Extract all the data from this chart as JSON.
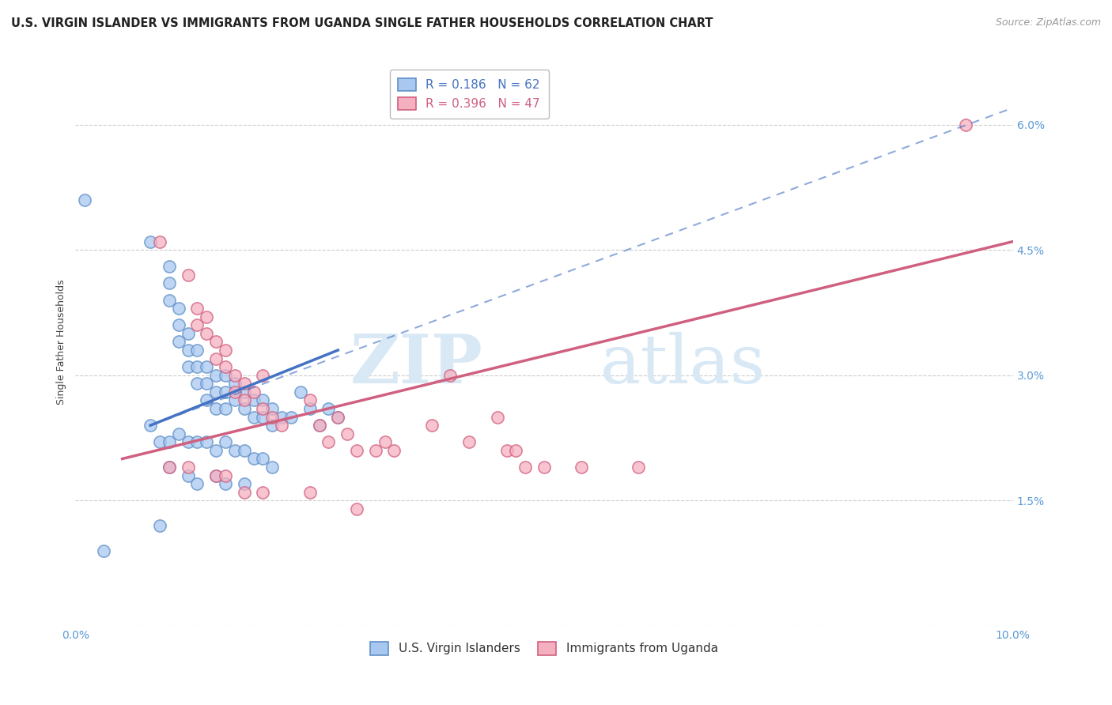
{
  "title": "U.S. VIRGIN ISLANDER VS IMMIGRANTS FROM UGANDA SINGLE FATHER HOUSEHOLDS CORRELATION CHART",
  "source": "Source: ZipAtlas.com",
  "ylabel": "Single Father Households",
  "xlim": [
    0.0,
    0.1
  ],
  "ylim": [
    0.0,
    0.068
  ],
  "xticks": [
    0.0,
    0.02,
    0.04,
    0.06,
    0.08,
    0.1
  ],
  "xtick_labels": [
    "0.0%",
    "",
    "",
    "",
    "",
    "10.0%"
  ],
  "ytick_positions": [
    0.0,
    0.015,
    0.03,
    0.045,
    0.06
  ],
  "ytick_labels": [
    "",
    "1.5%",
    "3.0%",
    "4.5%",
    "6.0%"
  ],
  "legend_entries": [
    {
      "label": "R = 0.186   N = 62",
      "color": "#7eb3e8"
    },
    {
      "label": "R = 0.396   N = 47",
      "color": "#f5a0b5"
    }
  ],
  "legend_labels_bottom": [
    "U.S. Virgin Islanders",
    "Immigrants from Uganda"
  ],
  "watermark_zip": "ZIP",
  "watermark_atlas": "atlas",
  "blue_scatter": [
    [
      0.001,
      0.051
    ],
    [
      0.008,
      0.046
    ],
    [
      0.01,
      0.043
    ],
    [
      0.01,
      0.041
    ],
    [
      0.01,
      0.039
    ],
    [
      0.011,
      0.038
    ],
    [
      0.011,
      0.036
    ],
    [
      0.011,
      0.034
    ],
    [
      0.012,
      0.035
    ],
    [
      0.012,
      0.033
    ],
    [
      0.012,
      0.031
    ],
    [
      0.013,
      0.033
    ],
    [
      0.013,
      0.031
    ],
    [
      0.013,
      0.029
    ],
    [
      0.014,
      0.031
    ],
    [
      0.014,
      0.029
    ],
    [
      0.014,
      0.027
    ],
    [
      0.015,
      0.03
    ],
    [
      0.015,
      0.028
    ],
    [
      0.015,
      0.026
    ],
    [
      0.016,
      0.03
    ],
    [
      0.016,
      0.028
    ],
    [
      0.016,
      0.026
    ],
    [
      0.017,
      0.029
    ],
    [
      0.017,
      0.027
    ],
    [
      0.018,
      0.028
    ],
    [
      0.018,
      0.026
    ],
    [
      0.019,
      0.027
    ],
    [
      0.019,
      0.025
    ],
    [
      0.02,
      0.027
    ],
    [
      0.02,
      0.025
    ],
    [
      0.021,
      0.026
    ],
    [
      0.021,
      0.024
    ],
    [
      0.022,
      0.025
    ],
    [
      0.023,
      0.025
    ],
    [
      0.024,
      0.028
    ],
    [
      0.025,
      0.026
    ],
    [
      0.026,
      0.024
    ],
    [
      0.027,
      0.026
    ],
    [
      0.028,
      0.025
    ],
    [
      0.008,
      0.024
    ],
    [
      0.009,
      0.022
    ],
    [
      0.01,
      0.022
    ],
    [
      0.011,
      0.023
    ],
    [
      0.012,
      0.022
    ],
    [
      0.013,
      0.022
    ],
    [
      0.014,
      0.022
    ],
    [
      0.015,
      0.021
    ],
    [
      0.016,
      0.022
    ],
    [
      0.017,
      0.021
    ],
    [
      0.018,
      0.021
    ],
    [
      0.019,
      0.02
    ],
    [
      0.02,
      0.02
    ],
    [
      0.021,
      0.019
    ],
    [
      0.01,
      0.019
    ],
    [
      0.012,
      0.018
    ],
    [
      0.013,
      0.017
    ],
    [
      0.015,
      0.018
    ],
    [
      0.016,
      0.017
    ],
    [
      0.018,
      0.017
    ],
    [
      0.003,
      0.009
    ],
    [
      0.009,
      0.012
    ]
  ],
  "pink_scatter": [
    [
      0.009,
      0.046
    ],
    [
      0.012,
      0.042
    ],
    [
      0.013,
      0.038
    ],
    [
      0.013,
      0.036
    ],
    [
      0.014,
      0.037
    ],
    [
      0.014,
      0.035
    ],
    [
      0.015,
      0.034
    ],
    [
      0.015,
      0.032
    ],
    [
      0.016,
      0.033
    ],
    [
      0.016,
      0.031
    ],
    [
      0.017,
      0.03
    ],
    [
      0.017,
      0.028
    ],
    [
      0.018,
      0.029
    ],
    [
      0.018,
      0.027
    ],
    [
      0.019,
      0.028
    ],
    [
      0.02,
      0.03
    ],
    [
      0.02,
      0.026
    ],
    [
      0.021,
      0.025
    ],
    [
      0.022,
      0.024
    ],
    [
      0.025,
      0.027
    ],
    [
      0.026,
      0.024
    ],
    [
      0.027,
      0.022
    ],
    [
      0.028,
      0.025
    ],
    [
      0.029,
      0.023
    ],
    [
      0.03,
      0.021
    ],
    [
      0.032,
      0.021
    ],
    [
      0.033,
      0.022
    ],
    [
      0.034,
      0.021
    ],
    [
      0.038,
      0.024
    ],
    [
      0.04,
      0.03
    ],
    [
      0.042,
      0.022
    ],
    [
      0.045,
      0.025
    ],
    [
      0.046,
      0.021
    ],
    [
      0.047,
      0.021
    ],
    [
      0.048,
      0.019
    ],
    [
      0.05,
      0.019
    ],
    [
      0.054,
      0.019
    ],
    [
      0.06,
      0.019
    ],
    [
      0.01,
      0.019
    ],
    [
      0.012,
      0.019
    ],
    [
      0.015,
      0.018
    ],
    [
      0.016,
      0.018
    ],
    [
      0.018,
      0.016
    ],
    [
      0.02,
      0.016
    ],
    [
      0.025,
      0.016
    ],
    [
      0.03,
      0.014
    ],
    [
      0.095,
      0.06
    ]
  ],
  "blue_line_solid": [
    [
      0.008,
      0.024
    ],
    [
      0.028,
      0.033
    ]
  ],
  "blue_line_dashed": [
    [
      0.008,
      0.024
    ],
    [
      0.1,
      0.062
    ]
  ],
  "pink_line_solid": [
    [
      0.005,
      0.02
    ],
    [
      0.1,
      0.046
    ]
  ],
  "blue_color": "#a8c8f0",
  "pink_color": "#f5b0c0",
  "blue_edge_color": "#6090c8",
  "pink_edge_color": "#d06080",
  "blue_line_color": "#4472c4",
  "pink_line_color": "#d06080",
  "grid_color": "#cccccc",
  "background_color": "#ffffff",
  "title_fontsize": 10.5,
  "axis_label_fontsize": 9,
  "tick_fontsize": 10,
  "legend_fontsize": 11
}
